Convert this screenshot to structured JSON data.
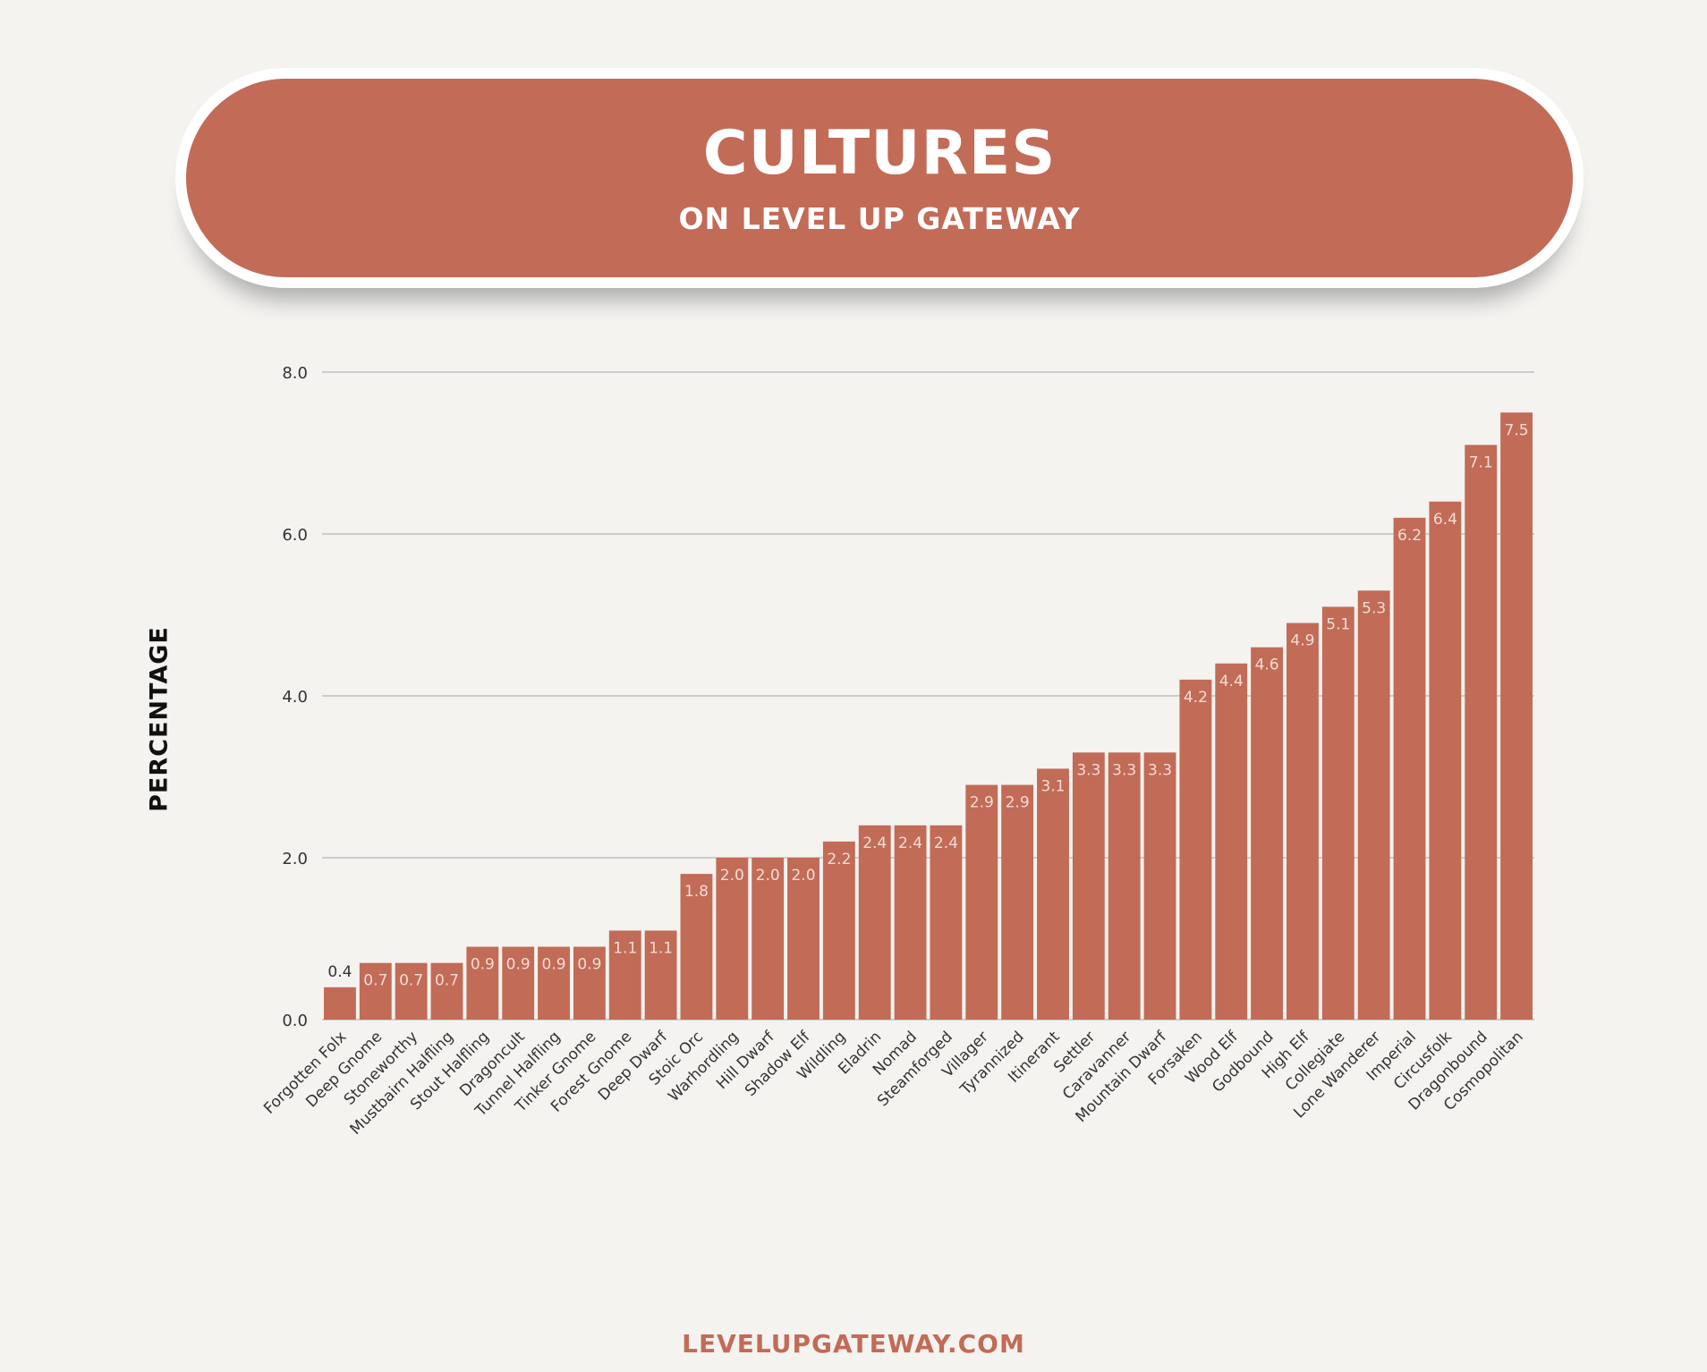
{
  "header": {
    "title": "CULTURES",
    "subtitle": "ON LEVEL UP GATEWAY"
  },
  "footer": {
    "text": "LEVELUPGATEWAY.COM"
  },
  "colors": {
    "bar": "#c26b57",
    "background": "#f4f3f0",
    "grid": "#bfbfbf",
    "banner": "#c26b57"
  },
  "chart_data": {
    "type": "bar",
    "title": "CULTURES",
    "subtitle": "ON LEVEL UP GATEWAY",
    "xlabel": "",
    "ylabel": "PERCENTAGE",
    "ylim": [
      0,
      8
    ],
    "yticks": [
      "0.0",
      "2.0",
      "4.0",
      "6.0",
      "8.0"
    ],
    "grid": true,
    "categories": [
      "Forgotten Folx",
      "Deep Gnome",
      "Stoneworthy",
      "Mustbairn Halfling",
      "Stout Halfling",
      "Dragoncult",
      "Tunnel Halfling",
      "Tinker Gnome",
      "Forest Gnome",
      "Deep Dwarf",
      "Stoic Orc",
      "Warhordling",
      "Hill Dwarf",
      "Shadow Elf",
      "Wildling",
      "Eladrin",
      "Nomad",
      "Steamforged",
      "Villager",
      "Tyrannized",
      "Itinerant",
      "Settler",
      "Caravanner",
      "Mountain Dwarf",
      "Forsaken",
      "Wood Elf",
      "Godbound",
      "High Elf",
      "Collegiate",
      "Lone Wanderer",
      "Imperial",
      "Circusfolk",
      "Dragonbound",
      "Cosmopolitan"
    ],
    "values": [
      0.4,
      0.7,
      0.7,
      0.7,
      0.9,
      0.9,
      0.9,
      0.9,
      1.1,
      1.1,
      1.8,
      2.0,
      2.0,
      2.0,
      2.2,
      2.4,
      2.4,
      2.4,
      2.9,
      2.9,
      3.1,
      3.3,
      3.3,
      3.3,
      4.2,
      4.4,
      4.6,
      4.9,
      5.1,
      5.3,
      6.2,
      6.4,
      7.1,
      7.5
    ],
    "data_labels": [
      "0.4",
      "0.7",
      "0.7",
      "0.7",
      "0.9",
      "0.9",
      "0.9",
      "0.9",
      "1.1",
      "1.1",
      "1.8",
      "2.0",
      "2.0",
      "2.0",
      "2.2",
      "2.4",
      "2.4",
      "2.4",
      "2.9",
      "2.9",
      "3.1",
      "3.3",
      "3.3",
      "3.3",
      "4.2",
      "4.4",
      "4.6",
      "4.9",
      "5.1",
      "5.3",
      "6.2",
      "6.4",
      "7.1",
      "7.5"
    ]
  }
}
